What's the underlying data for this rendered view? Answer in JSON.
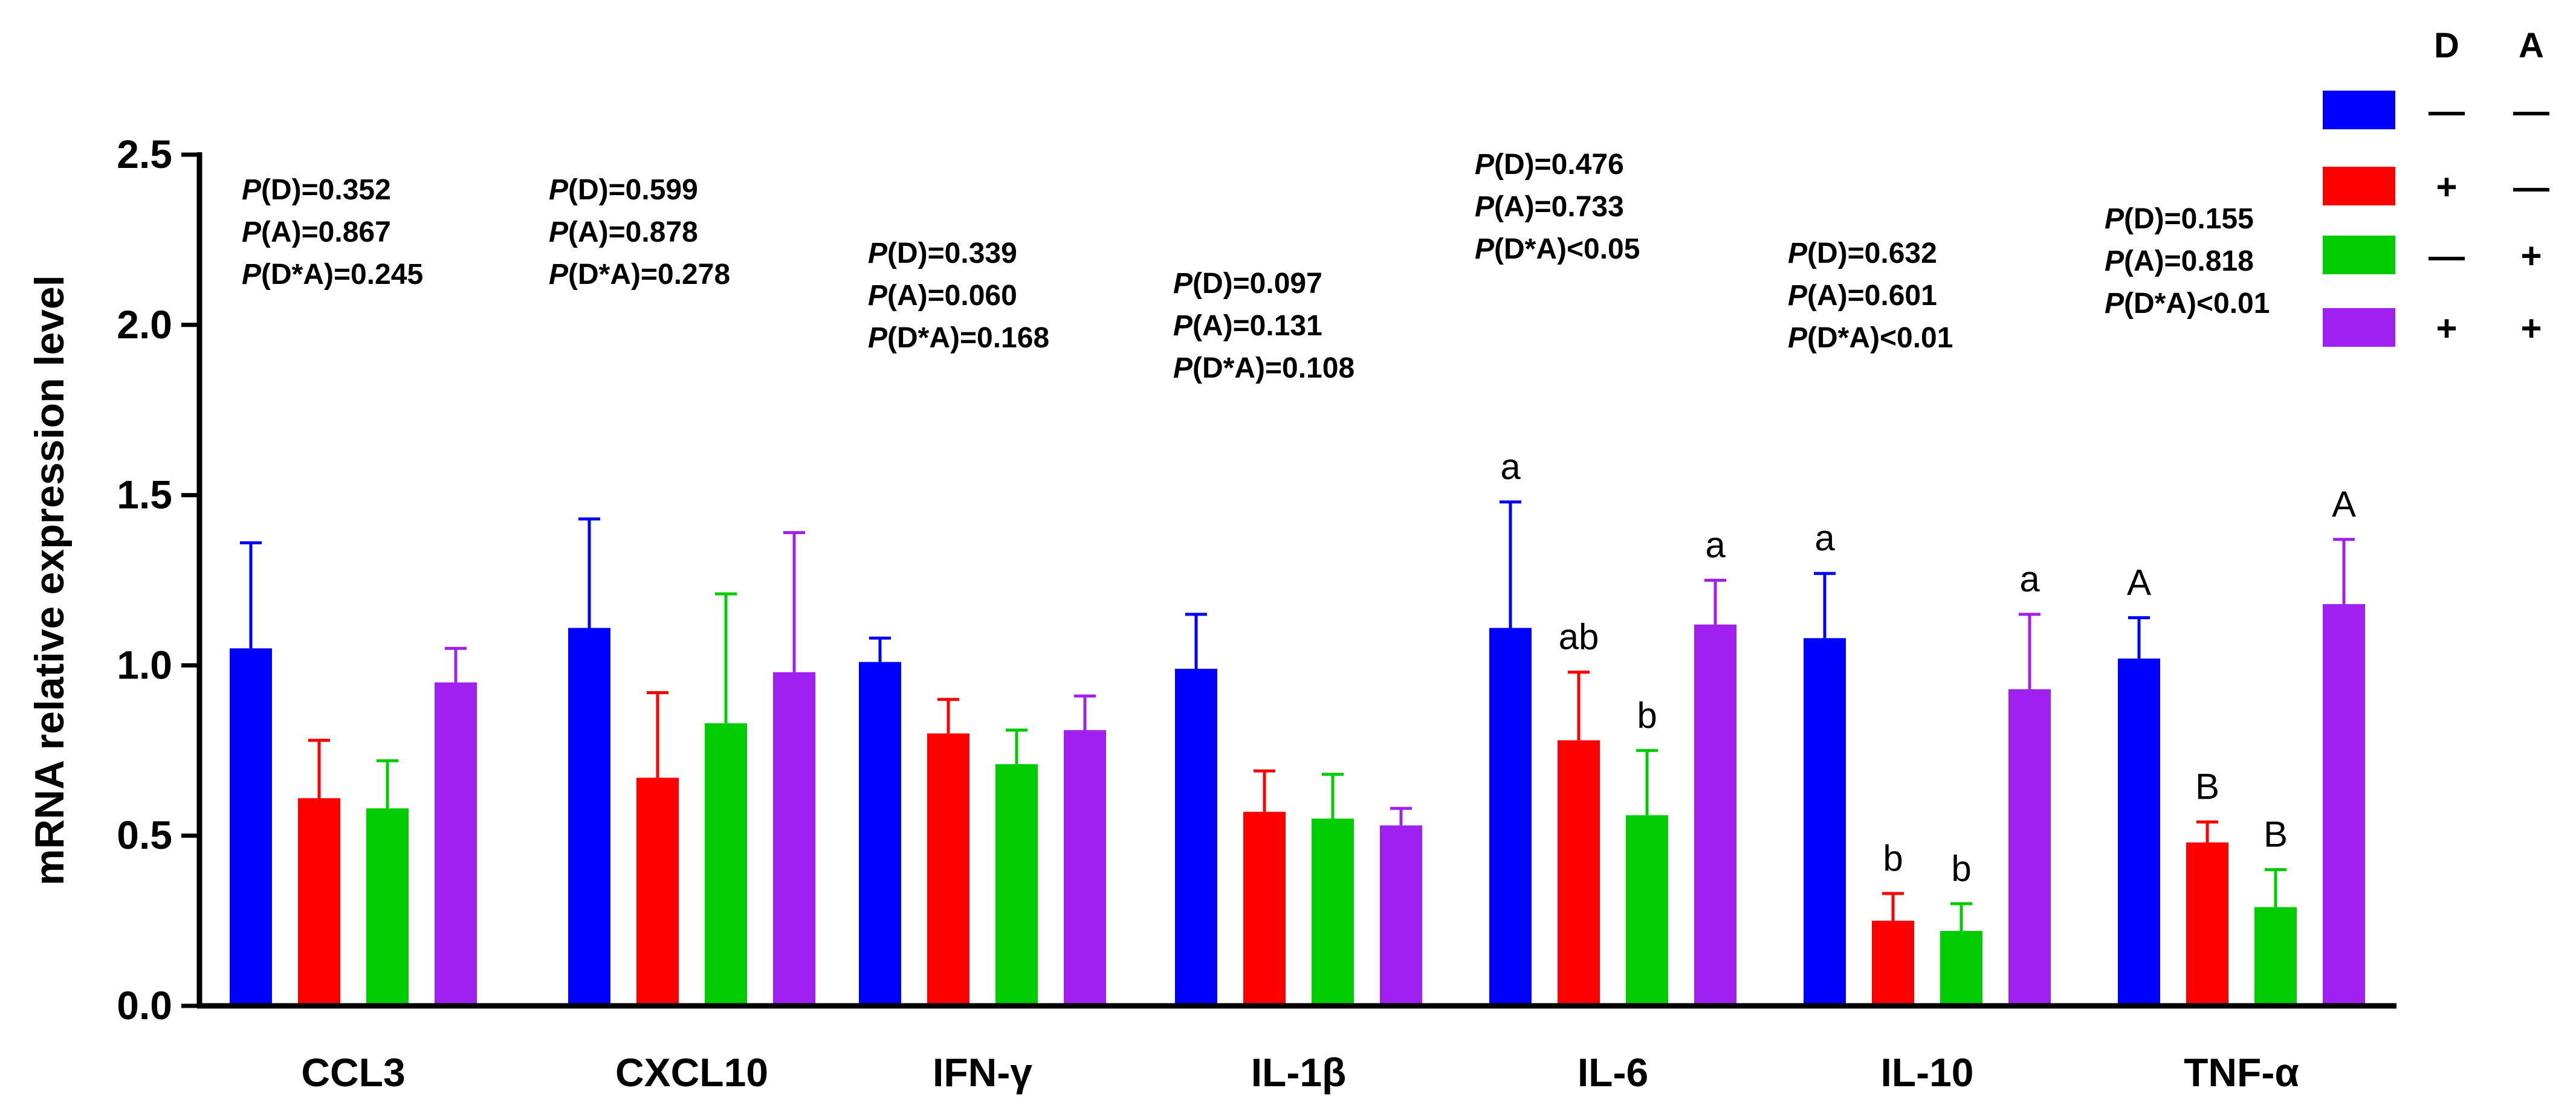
{
  "chart_data": {
    "type": "bar",
    "ylabel": "mRNA relative expression level",
    "ylim": [
      0,
      2.5
    ],
    "yticks": [
      "0.0",
      "0.5",
      "1.0",
      "1.5",
      "2.0",
      "2.5"
    ],
    "categories": [
      "CCL3",
      "CXCL10",
      "IFN-γ",
      "IL-1β",
      "IL-6",
      "IL-10",
      "TNF-α"
    ],
    "series": [
      {
        "name": "D— A—",
        "color": "#0000FF",
        "values": [
          1.05,
          1.11,
          1.01,
          0.99,
          1.11,
          1.08,
          1.02
        ],
        "errors": [
          0.31,
          0.32,
          0.07,
          0.16,
          0.37,
          0.19,
          0.12
        ]
      },
      {
        "name": "D+ A—",
        "color": "#FF0000",
        "values": [
          0.61,
          0.67,
          0.8,
          0.57,
          0.78,
          0.25,
          0.48
        ],
        "errors": [
          0.17,
          0.25,
          0.1,
          0.12,
          0.2,
          0.08,
          0.06
        ]
      },
      {
        "name": "D— A+",
        "color": "#00CC00",
        "values": [
          0.58,
          0.83,
          0.71,
          0.55,
          0.56,
          0.22,
          0.29
        ],
        "errors": [
          0.14,
          0.38,
          0.1,
          0.13,
          0.19,
          0.08,
          0.11
        ]
      },
      {
        "name": "D+ A+",
        "color": "#A020F0",
        "values": [
          0.95,
          0.98,
          0.81,
          0.53,
          1.12,
          0.93,
          1.18
        ],
        "errors": [
          0.1,
          0.41,
          0.1,
          0.05,
          0.13,
          0.22,
          0.19
        ]
      }
    ],
    "significance": [
      [
        "",
        "",
        "",
        ""
      ],
      [
        "",
        "",
        "",
        ""
      ],
      [
        "",
        "",
        "",
        ""
      ],
      [
        "",
        "",
        "",
        ""
      ],
      [
        "a",
        "ab",
        "b",
        "a"
      ],
      [
        "a",
        "b",
        "b",
        "a"
      ],
      [
        "A",
        "B",
        "B",
        "A"
      ]
    ],
    "pvalues": [
      {
        "d": "0.352",
        "a": "0.867",
        "da": "0.245",
        "d_op": "=",
        "a_op": "=",
        "da_op": "="
      },
      {
        "d": "0.599",
        "a": "0.878",
        "da": "0.278",
        "d_op": "=",
        "a_op": "=",
        "da_op": "="
      },
      {
        "d": "0.339",
        "a": "0.060",
        "da": "0.168",
        "d_op": "=",
        "a_op": "=",
        "da_op": "="
      },
      {
        "d": "0.097",
        "a": "0.131",
        "da": "0.108",
        "d_op": "=",
        "a_op": "=",
        "da_op": "="
      },
      {
        "d": "0.476",
        "a": "0.733",
        "da": "0.05",
        "d_op": "=",
        "a_op": "=",
        "da_op": "<"
      },
      {
        "d": "0.632",
        "a": "0.601",
        "da": "0.01",
        "d_op": "=",
        "a_op": "=",
        "da_op": "<"
      },
      {
        "d": "0.155",
        "a": "0.818",
        "da": "0.01",
        "d_op": "=",
        "a_op": "=",
        "da_op": "<"
      }
    ],
    "legend": {
      "placement": "top-right",
      "headers": [
        "D",
        "A"
      ],
      "rows": [
        {
          "d": "—",
          "a": "—"
        },
        {
          "d": "+",
          "a": "—"
        },
        {
          "d": "—",
          "a": "+"
        },
        {
          "d": "+",
          "a": "+"
        }
      ]
    }
  }
}
